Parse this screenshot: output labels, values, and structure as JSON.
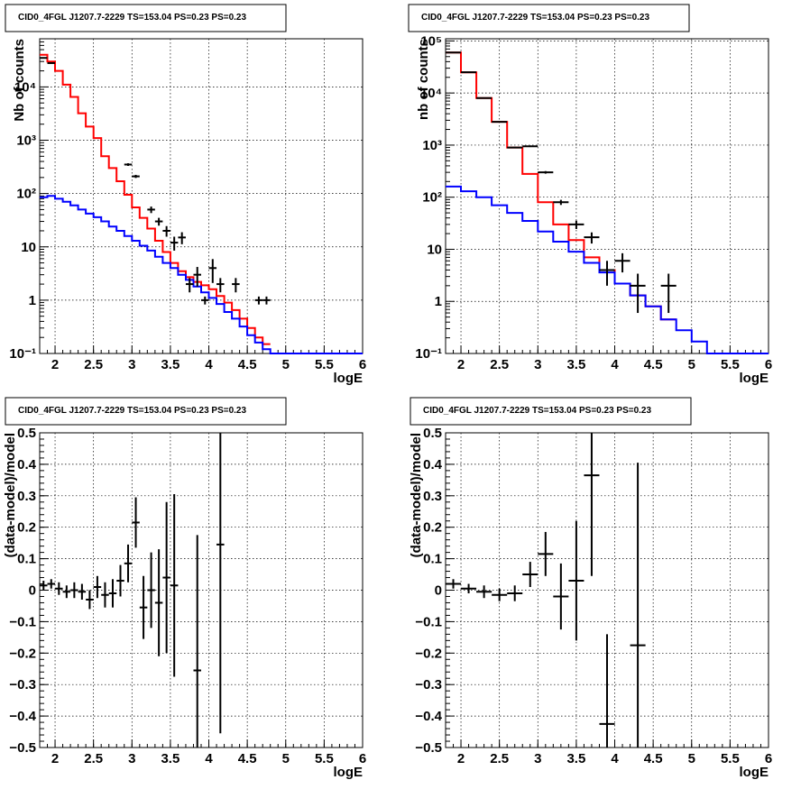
{
  "chart_data": [
    {
      "id": "top-left",
      "type": "line",
      "title": "CID0_4FGL J1207.7-2229 TS=153.04 PS=0.23 PS=0.23",
      "xlabel": "logE",
      "ylabel": "Nb of counts",
      "xlim": [
        1.8,
        6.0
      ],
      "ylim": [
        0.1,
        80000
      ],
      "yscale": "log",
      "grid": true,
      "xticks": [
        2,
        2.5,
        3,
        3.5,
        4,
        4.5,
        5,
        5.5,
        6
      ],
      "xtick_labels": [
        "2",
        "2.5",
        "3",
        "3.5",
        "4",
        "4.5",
        "5",
        "5.5",
        "6"
      ],
      "yticks": [
        0.1,
        1,
        10,
        100,
        1000,
        10000
      ],
      "ytick_labels": [
        "10⁻¹",
        "1",
        "10",
        "10²",
        "10³",
        "10⁴"
      ],
      "bin_edges": [
        1.8,
        1.9,
        2.0,
        2.1,
        2.2,
        2.3,
        2.4,
        2.5,
        2.6,
        2.7,
        2.8,
        2.9,
        3.0,
        3.1,
        3.2,
        3.3,
        3.4,
        3.5,
        3.6,
        3.7,
        3.8,
        3.9,
        4.0,
        4.1,
        4.2,
        4.3,
        4.4,
        4.5,
        4.6,
        4.7,
        4.8,
        4.9,
        5.0,
        5.1,
        5.2,
        5.3,
        5.4,
        5.5,
        5.6,
        5.7,
        5.8,
        5.9,
        6.0
      ],
      "series": [
        {
          "color": "#ff0000",
          "kind": "histogram",
          "values": [
            40000,
            30000,
            20000,
            11000,
            6500,
            3200,
            1800,
            1100,
            500,
            300,
            170,
            95,
            55,
            35,
            22,
            13,
            8,
            5,
            3.5,
            2.7,
            2.2,
            1.9,
            1.6,
            1.2,
            0.9,
            0.65,
            0.45,
            0.3,
            0.2,
            0.15
          ]
        },
        {
          "color": "#0000ff",
          "kind": "histogram",
          "values": [
            85,
            90,
            80,
            70,
            60,
            50,
            42,
            36,
            30,
            24,
            20,
            16,
            13,
            10.5,
            8.5,
            6.5,
            5,
            4,
            3,
            2.4,
            1.8,
            1.4,
            1.1,
            0.85,
            0.6,
            0.45,
            0.32,
            0.22,
            0.16,
            0.12,
            0.1,
            0.1,
            0.1,
            0.1,
            0.1,
            0.1,
            0.1,
            0.1,
            0.1,
            0.1,
            0.1,
            0.1
          ]
        },
        {
          "color": "#000000",
          "kind": "points",
          "x": [
            1.85,
            1.95,
            2.95,
            3.05,
            3.25,
            3.35,
            3.45,
            3.55,
            3.65,
            3.75,
            3.85,
            3.95,
            4.05,
            4.15,
            4.35,
            4.65,
            4.75
          ],
          "y": [
            35000,
            28000,
            350,
            210,
            50,
            30,
            20,
            12,
            15,
            2,
            3,
            1,
            4,
            2,
            2,
            1,
            1
          ],
          "yerr_low": [
            34800,
            27800,
            330,
            196,
            43,
            25,
            15.5,
            8.5,
            11.2,
            1.4,
            1.8,
            0.83,
            2.1,
            1.4,
            1.4,
            0.83,
            0.83
          ],
          "yerr_high": [
            35200,
            28200,
            370,
            224,
            57,
            35,
            24.5,
            15.5,
            18.8,
            2.6,
            4.2,
            1.17,
            5.9,
            2.6,
            2.6,
            1.17,
            1.17
          ]
        }
      ]
    },
    {
      "id": "top-right",
      "type": "line",
      "title": "CID0_4FGL J1207.7-2229 TS=153.04 PS=0.23 PS=0.23",
      "xlabel": "logE",
      "ylabel": "nb of counts",
      "xlim": [
        1.8,
        6.0
      ],
      "ylim": [
        0.1,
        110000
      ],
      "yscale": "log",
      "grid": true,
      "xticks": [
        2,
        2.5,
        3,
        3.5,
        4,
        4.5,
        5,
        5.5,
        6
      ],
      "xtick_labels": [
        "2",
        "2.5",
        "3",
        "3.5",
        "4",
        "4.5",
        "5",
        "5.5",
        "6"
      ],
      "yticks": [
        0.1,
        1,
        10,
        100,
        1000,
        10000,
        100000
      ],
      "ytick_labels": [
        "10⁻¹",
        "1",
        "10",
        "10²",
        "10³",
        "10⁴",
        "10⁵"
      ],
      "bin_edges": [
        1.8,
        2.0,
        2.2,
        2.4,
        2.6,
        2.8,
        3.0,
        3.2,
        3.4,
        3.6,
        3.8,
        4.0,
        4.2,
        4.4,
        4.6,
        4.8,
        5.0,
        5.2,
        5.4,
        5.6,
        5.8,
        6.0
      ],
      "series": [
        {
          "color": "#ff0000",
          "kind": "histogram",
          "values": [
            60000,
            25000,
            8000,
            2800,
            900,
            280,
            80,
            30,
            15,
            7,
            4,
            2.2,
            1.3,
            0.8,
            0.45
          ]
        },
        {
          "color": "#0000ff",
          "kind": "histogram",
          "values": [
            160,
            130,
            100,
            70,
            50,
            35,
            22,
            14,
            9,
            5.5,
            3.6,
            2.2,
            1.3,
            0.8,
            0.45,
            0.28,
            0.17,
            0.1,
            0.1,
            0.1,
            0.1
          ]
        },
        {
          "color": "#000000",
          "kind": "points",
          "x": [
            1.9,
            2.1,
            2.3,
            2.5,
            2.7,
            2.9,
            3.1,
            3.3,
            3.5,
            3.7,
            3.9,
            4.1,
            4.3,
            4.7
          ],
          "y": [
            60000,
            25000,
            8000,
            2800,
            900,
            950,
            300,
            80,
            30,
            17,
            4,
            6,
            2,
            2
          ],
          "yerr_low": [
            59755,
            24842,
            7911,
            2747,
            870,
            919,
            283,
            71,
            24.5,
            12.9,
            2.0,
            3.6,
            0.6,
            0.6
          ],
          "yerr_high": [
            60245,
            25158,
            8089,
            2853,
            930,
            981,
            317,
            89,
            35.5,
            21.1,
            6.0,
            8.4,
            3.4,
            3.4
          ]
        }
      ]
    },
    {
      "id": "bottom-left",
      "type": "scatter",
      "title": "CID0_4FGL J1207.7-2229 TS=153.04 PS=0.23 PS=0.23",
      "xlabel": "logE",
      "ylabel": "(data-model)/model",
      "xlim": [
        1.8,
        6.0
      ],
      "ylim": [
        -0.5,
        0.5
      ],
      "yscale": "linear",
      "grid": true,
      "xticks": [
        2,
        2.5,
        3,
        3.5,
        4,
        4.5,
        5,
        5.5,
        6
      ],
      "xtick_labels": [
        "2",
        "2.5",
        "3",
        "3.5",
        "4",
        "4.5",
        "5",
        "5.5",
        "6"
      ],
      "yticks": [
        -0.5,
        -0.4,
        -0.3,
        -0.2,
        -0.1,
        0,
        0.1,
        0.2,
        0.3,
        0.4,
        0.5
      ],
      "ytick_labels": [
        "−0.5",
        "−0.4",
        "−0.3",
        "−0.2",
        "−0.1",
        "0",
        "0.1",
        "0.2",
        "0.3",
        "0.4",
        "0.5"
      ],
      "series": [
        {
          "color": "#000000",
          "kind": "points",
          "x": [
            1.85,
            1.95,
            2.05,
            2.15,
            2.25,
            2.35,
            2.45,
            2.55,
            2.65,
            2.75,
            2.85,
            2.95,
            3.05,
            3.15,
            3.25,
            3.35,
            3.45,
            3.55,
            3.85,
            4.15
          ],
          "y": [
            0.015,
            0.02,
            0.005,
            -0.005,
            0.0,
            -0.005,
            -0.03,
            0.01,
            -0.015,
            -0.01,
            0.03,
            0.085,
            0.215,
            -0.055,
            0.0,
            -0.04,
            0.04,
            0.015,
            -0.255,
            0.145
          ],
          "yerr": [
            0.015,
            0.015,
            0.02,
            0.02,
            0.025,
            0.025,
            0.03,
            0.035,
            0.04,
            0.045,
            0.05,
            0.06,
            0.08,
            0.1,
            0.12,
            0.17,
            0.24,
            0.29,
            0.43,
            0.6
          ]
        }
      ]
    },
    {
      "id": "bottom-right",
      "type": "scatter",
      "title": "CID0_4FGL J1207.7-2229 TS=153.04 PS=0.23 PS=0.23",
      "xlabel": "logE",
      "ylabel": "(data-model)/model",
      "xlim": [
        1.8,
        6.0
      ],
      "ylim": [
        -0.5,
        0.5
      ],
      "yscale": "linear",
      "grid": true,
      "xticks": [
        2,
        2.5,
        3,
        3.5,
        4,
        4.5,
        5,
        5.5,
        6
      ],
      "xtick_labels": [
        "2",
        "2.5",
        "3",
        "3.5",
        "4",
        "4.5",
        "5",
        "5.5",
        "6"
      ],
      "yticks": [
        -0.5,
        -0.4,
        -0.3,
        -0.2,
        -0.1,
        0,
        0.1,
        0.2,
        0.3,
        0.4,
        0.5
      ],
      "ytick_labels": [
        "−0.5",
        "−0.4",
        "−0.3",
        "−0.2",
        "−0.1",
        "0",
        "0.1",
        "0.2",
        "0.3",
        "0.4",
        "0.5"
      ],
      "series": [
        {
          "color": "#000000",
          "kind": "points",
          "x": [
            1.9,
            2.1,
            2.3,
            2.5,
            2.7,
            2.9,
            3.1,
            3.3,
            3.5,
            3.7,
            3.9,
            4.3
          ],
          "y": [
            0.02,
            0.005,
            -0.005,
            -0.015,
            -0.01,
            0.05,
            0.115,
            -0.02,
            0.03,
            0.365,
            -0.425,
            -0.175
          ],
          "yerr": [
            0.015,
            0.015,
            0.02,
            0.02,
            0.025,
            0.04,
            0.07,
            0.105,
            0.19,
            0.32,
            0.285,
            0.58
          ]
        }
      ]
    }
  ]
}
